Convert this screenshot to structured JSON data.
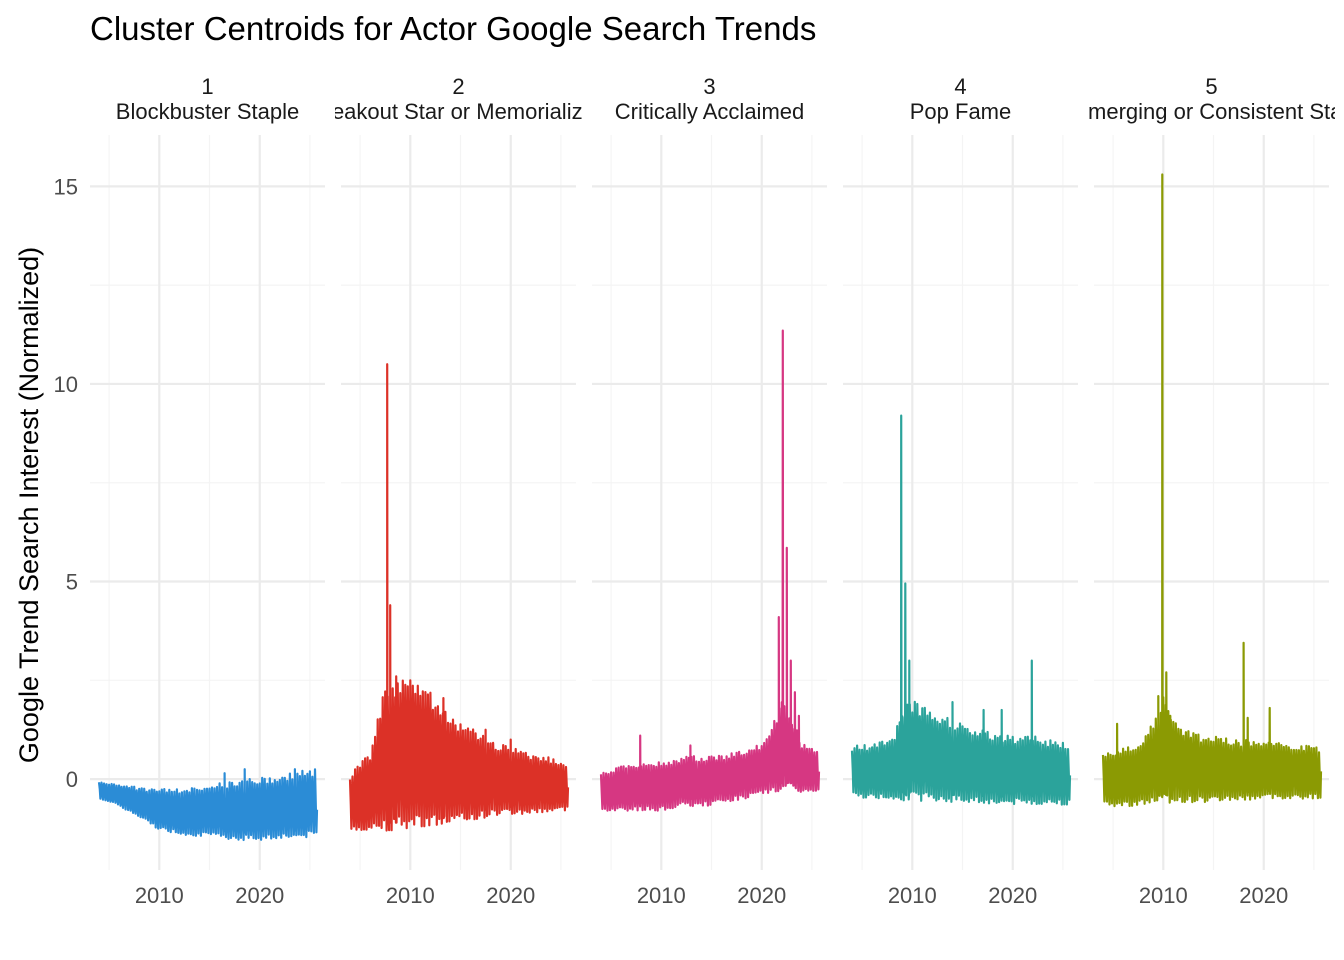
{
  "chart_data": {
    "type": "line",
    "title": "Cluster Centroids for Actor Google Search Trends",
    "xlabel": "",
    "ylabel": "Google Trend Search Interest (Normalized)",
    "ylim": [
      -2.3,
      16.3
    ],
    "xlim": [
      2003.1,
      2026.5
    ],
    "x_ticks": [
      2010,
      2020
    ],
    "x_tick_labels": [
      "2010",
      "2020"
    ],
    "y_ticks": [
      0,
      5,
      10,
      15
    ],
    "y_tick_labels": [
      "0",
      "5",
      "10",
      "15"
    ],
    "grid": true,
    "legend": "none",
    "panels": [
      {
        "id": "1",
        "label": "Blockbuster Staple",
        "color": "#2B8CD6",
        "x_start": 2004,
        "x_end": 2025.5,
        "envelope_x": [
          2004,
          2006,
          2008,
          2010,
          2012,
          2014,
          2016,
          2018,
          2020,
          2022,
          2024,
          2025.5
        ],
        "envelope_low": [
          -0.5,
          -0.7,
          -1.0,
          -1.3,
          -1.4,
          -1.45,
          -1.5,
          -1.55,
          -1.55,
          -1.5,
          -1.5,
          -1.45
        ],
        "envelope_high": [
          -0.05,
          -0.15,
          -0.2,
          -0.25,
          -0.25,
          -0.2,
          -0.1,
          0.0,
          0.05,
          0.1,
          0.2,
          0.25
        ],
        "spikes": [
          {
            "x": 2016.5,
            "y": 0.15
          },
          {
            "x": 2018.5,
            "y": 0.25
          },
          {
            "x": 2023.5,
            "y": 0.25
          }
        ]
      },
      {
        "id": "2",
        "label": "Breakout Star or Memorialized",
        "color": "#DC3127",
        "x_start": 2004,
        "x_end": 2025.5,
        "envelope_x": [
          2004,
          2006,
          2007.5,
          2009,
          2011,
          2013,
          2015,
          2017,
          2019,
          2021,
          2023,
          2025.5
        ],
        "envelope_low": [
          -1.3,
          -1.3,
          -1.3,
          -1.3,
          -1.2,
          -1.2,
          -1.1,
          -1.0,
          -0.9,
          -0.9,
          -0.85,
          -0.8
        ],
        "envelope_high": [
          0.1,
          0.7,
          2.4,
          2.6,
          2.4,
          2.0,
          1.4,
          1.2,
          0.9,
          0.75,
          0.6,
          0.45
        ],
        "spikes": [
          {
            "x": 2007.7,
            "y": 10.5
          },
          {
            "x": 2008.0,
            "y": 4.4
          },
          {
            "x": 2008.6,
            "y": 2.6
          },
          {
            "x": 2013.3,
            "y": 2.05
          },
          {
            "x": 2017.5,
            "y": 1.25
          },
          {
            "x": 2020.0,
            "y": 1.0
          }
        ]
      },
      {
        "id": "3",
        "label": "Critically Acclaimed",
        "color": "#D63782",
        "x_start": 2004,
        "x_end": 2025.5,
        "envelope_x": [
          2004,
          2006,
          2008,
          2010,
          2012,
          2014,
          2016,
          2018,
          2020,
          2021,
          2022,
          2023,
          2024,
          2025.5
        ],
        "envelope_low": [
          -0.8,
          -0.8,
          -0.8,
          -0.8,
          -0.7,
          -0.7,
          -0.6,
          -0.5,
          -0.4,
          -0.35,
          -0.3,
          -0.3,
          -0.35,
          -0.35
        ],
        "envelope_high": [
          0.2,
          0.35,
          0.4,
          0.45,
          0.55,
          0.6,
          0.6,
          0.75,
          0.9,
          1.3,
          2.0,
          1.6,
          0.9,
          0.8
        ],
        "spikes": [
          {
            "x": 2007.9,
            "y": 1.1
          },
          {
            "x": 2012.9,
            "y": 0.85
          },
          {
            "x": 2021.7,
            "y": 4.1
          },
          {
            "x": 2022.1,
            "y": 11.35
          },
          {
            "x": 2022.5,
            "y": 5.85
          },
          {
            "x": 2022.9,
            "y": 3.0
          },
          {
            "x": 2023.3,
            "y": 2.2
          },
          {
            "x": 2023.7,
            "y": 1.6
          }
        ]
      },
      {
        "id": "4",
        "label": "Pop Fame",
        "color": "#2BA39B",
        "x_start": 2004,
        "x_end": 2025.5,
        "envelope_x": [
          2004,
          2006,
          2008,
          2009,
          2010,
          2012,
          2014,
          2016,
          2018,
          2020,
          2022,
          2024,
          2025.5
        ],
        "envelope_low": [
          -0.45,
          -0.5,
          -0.5,
          -0.55,
          -0.55,
          -0.55,
          -0.6,
          -0.6,
          -0.65,
          -0.65,
          -0.65,
          -0.65,
          -0.65
        ],
        "envelope_high": [
          0.85,
          0.9,
          1.0,
          1.8,
          2.0,
          1.7,
          1.5,
          1.3,
          1.2,
          1.1,
          1.1,
          1.0,
          0.95
        ],
        "spikes": [
          {
            "x": 2008.9,
            "y": 9.2
          },
          {
            "x": 2009.3,
            "y": 4.95
          },
          {
            "x": 2009.7,
            "y": 3.0
          },
          {
            "x": 2014.0,
            "y": 1.95
          },
          {
            "x": 2017.1,
            "y": 1.75
          },
          {
            "x": 2018.9,
            "y": 1.75
          },
          {
            "x": 2021.9,
            "y": 3.0
          }
        ]
      },
      {
        "id": "5",
        "label": "Emerging or Consistent Star",
        "color": "#8B9A03",
        "x_start": 2004,
        "x_end": 2025.5,
        "envelope_x": [
          2004,
          2006,
          2008,
          2010,
          2012,
          2014,
          2016,
          2018,
          2020,
          2022,
          2024,
          2025.5
        ],
        "envelope_low": [
          -0.7,
          -0.7,
          -0.65,
          -0.6,
          -0.6,
          -0.6,
          -0.55,
          -0.55,
          -0.5,
          -0.5,
          -0.5,
          -0.5
        ],
        "envelope_high": [
          0.7,
          0.8,
          0.95,
          2.1,
          1.3,
          1.1,
          1.05,
          1.0,
          0.95,
          0.9,
          0.85,
          0.8
        ],
        "spikes": [
          {
            "x": 2005.4,
            "y": 1.4
          },
          {
            "x": 2009.5,
            "y": 2.1
          },
          {
            "x": 2009.9,
            "y": 15.3
          },
          {
            "x": 2010.3,
            "y": 2.7
          },
          {
            "x": 2010.7,
            "y": 1.6
          },
          {
            "x": 2018.0,
            "y": 3.45
          },
          {
            "x": 2018.4,
            "y": 1.55
          },
          {
            "x": 2020.6,
            "y": 1.8
          }
        ]
      }
    ]
  }
}
